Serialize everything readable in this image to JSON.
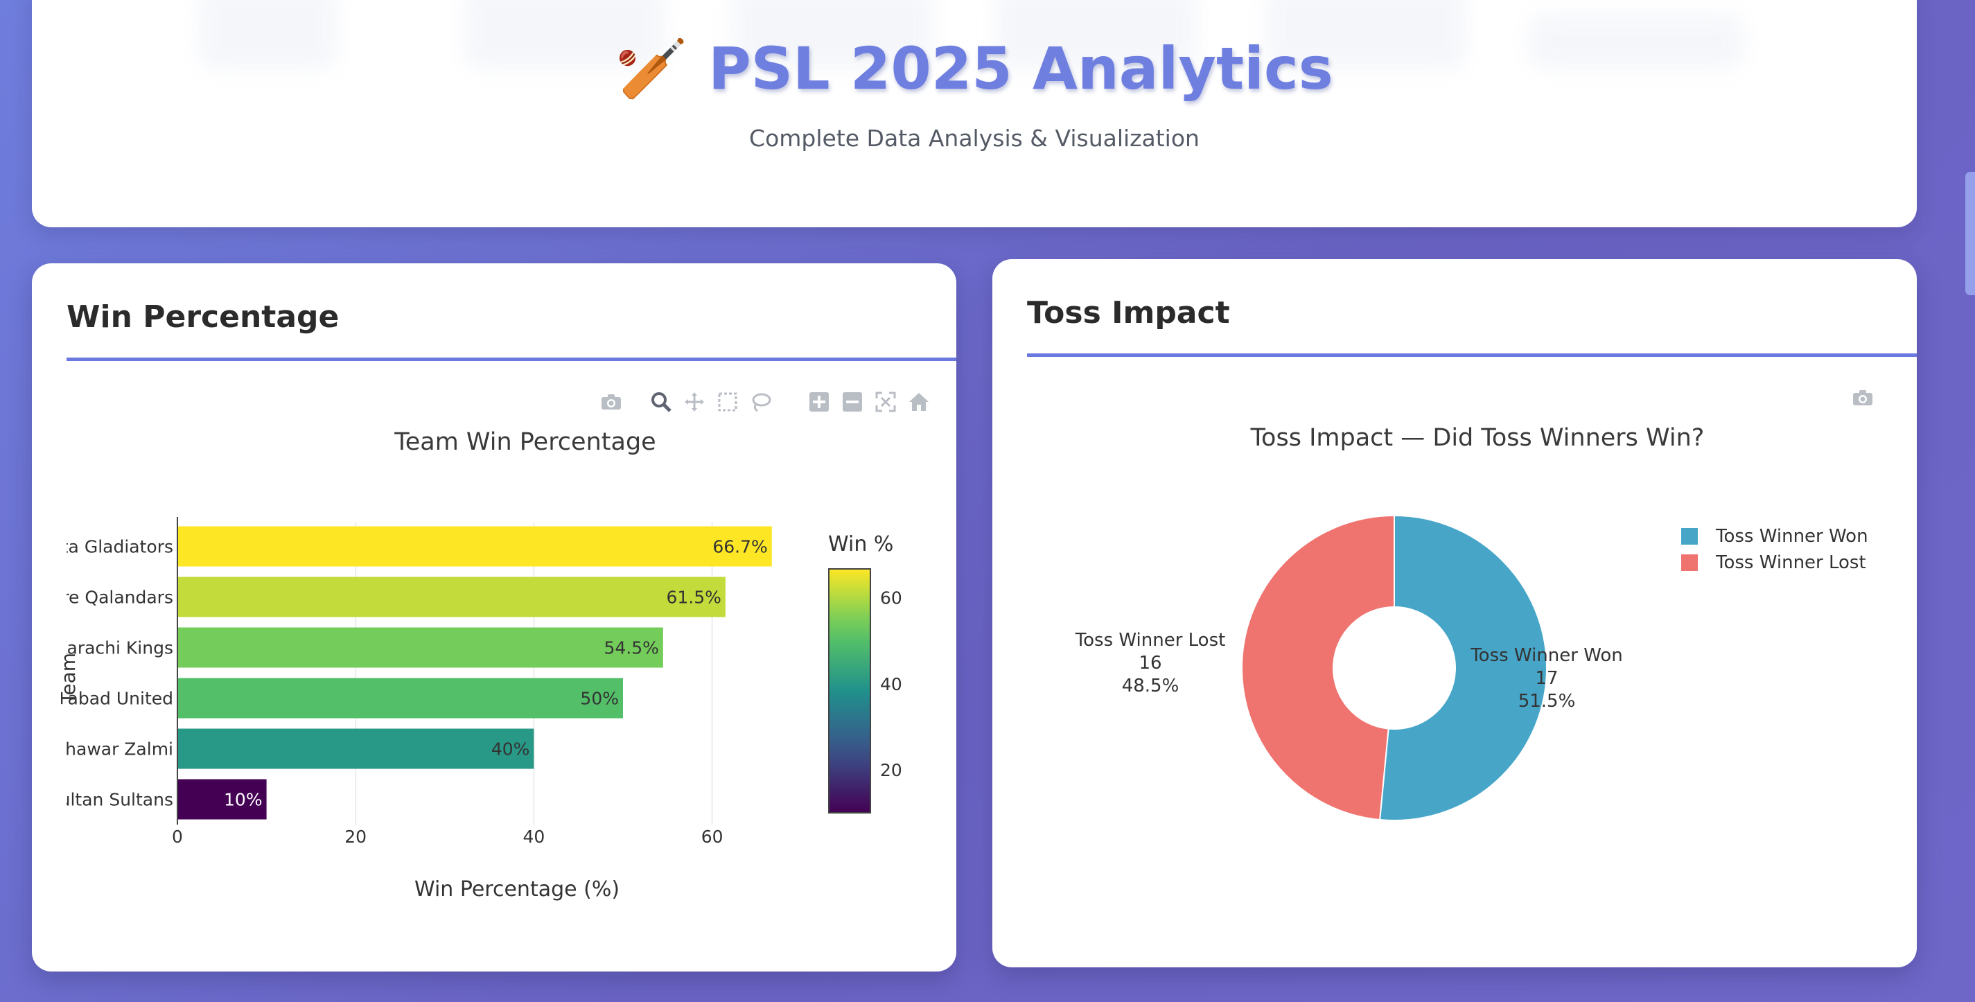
{
  "header": {
    "title_emoji": "🏏",
    "title": "PSL 2025 Analytics",
    "subtitle": "Complete Data Analysis & Visualization"
  },
  "win_card": {
    "heading": "Win Percentage",
    "toolbar_icons": [
      "camera-icon",
      "zoom-icon",
      "pan-icon",
      "box-select-icon",
      "lasso-select-icon",
      "zoom-in-icon",
      "zoom-out-icon",
      "autoscale-icon",
      "reset-axes-icon"
    ]
  },
  "toss_card": {
    "heading": "Toss Impact",
    "toolbar_icons": [
      "camera-icon"
    ]
  },
  "chart_data": [
    {
      "type": "bar",
      "orientation": "horizontal",
      "title": "Team Win Percentage",
      "xlabel": "Win Percentage (%)",
      "ylabel": "Team",
      "categories": [
        "Quetta Gladiators",
        "Lahore Qalandars",
        "Karachi Kings",
        "Islamabad United",
        "Peshawar Zalmi",
        "Multan Sultans"
      ],
      "category_labels_visible": [
        "ta Gladiators",
        "re Qalandars",
        "Karachi Kings",
        "nabad United",
        "shawar Zalmi",
        "ultan Sultans"
      ],
      "values": [
        66.7,
        61.5,
        54.5,
        50,
        40,
        10
      ],
      "data_labels": [
        "66.7%",
        "61.5%",
        "54.5%",
        "50%",
        "40%",
        "10%"
      ],
      "xlim": [
        0,
        70
      ],
      "xticks": [
        "0",
        "20",
        "40",
        "60"
      ],
      "grid": true,
      "colorbar": {
        "title": "Win %",
        "ticks": [
          "60",
          "40",
          "20"
        ],
        "range": [
          10,
          66.7
        ],
        "colorscale": "viridis"
      }
    },
    {
      "type": "pie",
      "hole": true,
      "title": "Toss Impact — Did Toss Winners Win?",
      "slices": [
        {
          "label": "Toss Winner Won",
          "value": 17,
          "percent": "51.5%",
          "color": "#47a6c8"
        },
        {
          "label": "Toss Winner Lost",
          "value": 16,
          "percent": "48.5%",
          "color": "#ef7470"
        }
      ],
      "legend_position": "top-right"
    }
  ]
}
